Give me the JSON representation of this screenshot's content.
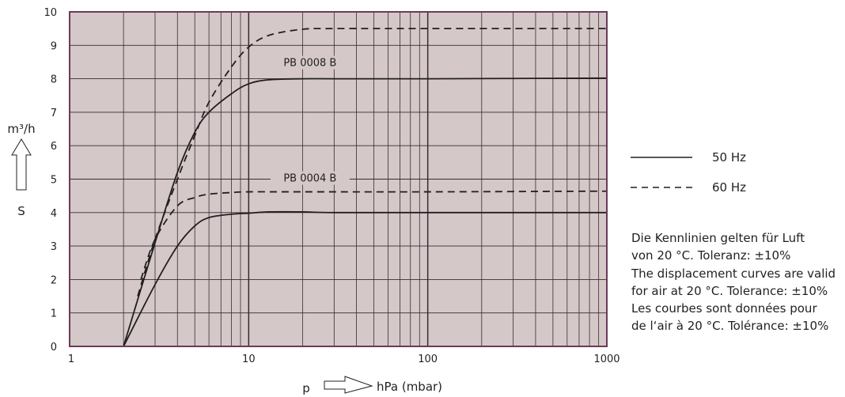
{
  "chart_data": {
    "type": "line",
    "x_scale": "log",
    "xlim": [
      1,
      1000
    ],
    "ylim": [
      0,
      10
    ],
    "x_ticks": [
      "1",
      "10",
      "100",
      "1000"
    ],
    "y_ticks": [
      "0",
      "1",
      "2",
      "3",
      "4",
      "5",
      "6",
      "7",
      "8",
      "9",
      "10"
    ],
    "xlabel_prefix": "p",
    "xlabel": "hPa (mbar)",
    "ylabel_unit": "m³/h",
    "ylabel_symbol": "S",
    "grid": true,
    "plot_background": "#d5c8c9",
    "frame_color": "#6b3a5a",
    "curve_labels": [
      {
        "text": "PB 0008 B",
        "x": 22,
        "y": 8.4
      },
      {
        "text": "PB 0004 B",
        "x": 22,
        "y": 4.95
      }
    ],
    "series": [
      {
        "label": "PB 0008 B",
        "frequency": "50 Hz",
        "style": "solid",
        "x": [
          2,
          3,
          4,
          5,
          6,
          8,
          10,
          13,
          20,
          30,
          100,
          1000
        ],
        "y": [
          0,
          3.1,
          5.2,
          6.4,
          7.0,
          7.55,
          7.85,
          7.97,
          8.0,
          8.0,
          8.0,
          8.02
        ]
      },
      {
        "label": "PB 0008 B",
        "frequency": "60 Hz",
        "style": "dashed",
        "x": [
          2.4,
          3,
          4,
          5,
          6,
          8,
          10,
          13,
          20,
          30,
          100,
          1000
        ],
        "y": [
          1.5,
          3.2,
          5.0,
          6.3,
          7.3,
          8.35,
          8.95,
          9.3,
          9.48,
          9.5,
          9.5,
          9.5
        ]
      },
      {
        "label": "PB 0004 B",
        "frequency": "50 Hz",
        "style": "solid",
        "x": [
          2,
          3,
          4,
          5,
          6,
          8,
          10,
          13,
          20,
          30,
          100,
          1000
        ],
        "y": [
          0,
          1.85,
          3.0,
          3.6,
          3.85,
          3.95,
          3.98,
          4.02,
          4.02,
          4.0,
          4.0,
          4.0
        ]
      },
      {
        "label": "PB 0004 B",
        "frequency": "60 Hz",
        "style": "dashed",
        "x": [
          2.5,
          3,
          4,
          5,
          6,
          8,
          10,
          15,
          20,
          30,
          100,
          1000
        ],
        "y": [
          2.0,
          3.2,
          4.2,
          4.45,
          4.55,
          4.6,
          4.62,
          4.62,
          4.62,
          4.62,
          4.62,
          4.64
        ]
      }
    ],
    "legend": [
      {
        "style": "solid",
        "label": "50 Hz"
      },
      {
        "style": "dashed",
        "label": "60 Hz"
      }
    ],
    "legend_position": "right",
    "note": "Die Kennlinien gelten für Luft\nvon 20 °C. Toleranz: ±10%\nThe displacement curves are valid\nfor air at 20 °C. Tolerance: ±10%\nLes courbes sont données pour\nde l‘air à 20 °C. Tolérance: ±10%"
  }
}
